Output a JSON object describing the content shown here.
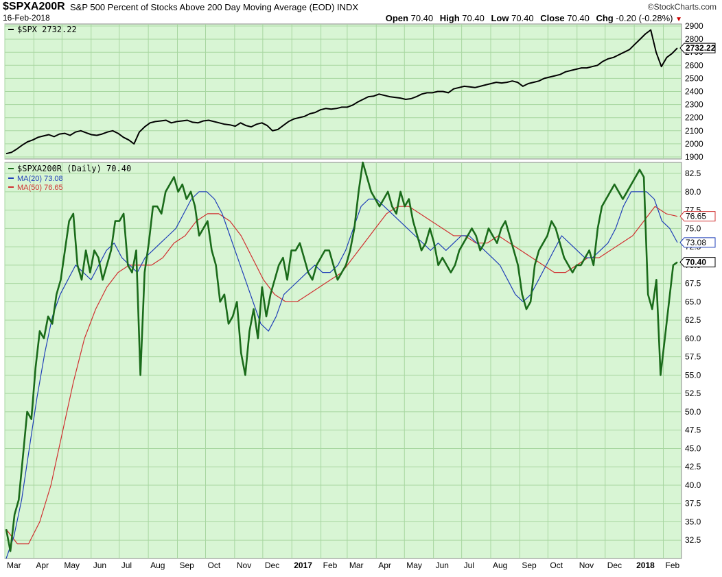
{
  "header": {
    "symbol": "$SPXA200R",
    "description": "S&P 500 Percent of Stocks Above 200 Day Moving Average (EOD)",
    "exchange": "INDX",
    "date": "16-Feb-2018",
    "brand": "©StockCharts.com",
    "open_label": "Open",
    "open": "70.40",
    "high_label": "High",
    "high": "70.40",
    "low_label": "Low",
    "low": "70.40",
    "close_label": "Close",
    "close": "70.40",
    "chg_label": "Chg",
    "chg": "-0.20 (-0.28%)",
    "chg_arrow": "▼"
  },
  "chart_data": [
    {
      "type": "line",
      "panel": "top",
      "series": [
        {
          "name": "$SPX 2732.22",
          "color": "#000000",
          "last_label": "2732.22",
          "values": [
            1925,
            1935,
            1960,
            1990,
            2015,
            2030,
            2050,
            2060,
            2070,
            2055,
            2075,
            2080,
            2065,
            2090,
            2100,
            2085,
            2070,
            2065,
            2075,
            2090,
            2100,
            2080,
            2050,
            2030,
            2000,
            2090,
            2130,
            2160,
            2170,
            2175,
            2180,
            2160,
            2170,
            2175,
            2180,
            2165,
            2160,
            2175,
            2180,
            2170,
            2160,
            2150,
            2145,
            2135,
            2160,
            2140,
            2130,
            2150,
            2160,
            2140,
            2100,
            2110,
            2140,
            2170,
            2190,
            2200,
            2210,
            2230,
            2240,
            2260,
            2270,
            2265,
            2270,
            2280,
            2280,
            2295,
            2320,
            2340,
            2360,
            2365,
            2380,
            2370,
            2360,
            2355,
            2350,
            2340,
            2345,
            2360,
            2380,
            2390,
            2390,
            2400,
            2400,
            2390,
            2420,
            2430,
            2440,
            2435,
            2430,
            2440,
            2450,
            2460,
            2470,
            2465,
            2470,
            2480,
            2470,
            2440,
            2460,
            2470,
            2480,
            2500,
            2510,
            2520,
            2530,
            2550,
            2560,
            2570,
            2580,
            2580,
            2590,
            2600,
            2630,
            2650,
            2660,
            2680,
            2700,
            2720,
            2760,
            2800,
            2840,
            2870,
            2700,
            2590,
            2660,
            2690,
            2732
          ]
        }
      ],
      "ylim": [
        1900,
        2900
      ],
      "yticks": [
        1900,
        2000,
        2100,
        2200,
        2300,
        2400,
        2500,
        2600,
        2700,
        2800,
        2900
      ]
    },
    {
      "type": "line",
      "panel": "bottom",
      "x_start": "2016-03-01",
      "x_end": "2018-02-16",
      "xticks": [
        {
          "label": "Mar",
          "date": "2016-03-01",
          "bold": false
        },
        {
          "label": "Apr",
          "date": "2016-04-01",
          "bold": false
        },
        {
          "label": "May",
          "date": "2016-05-01",
          "bold": false
        },
        {
          "label": "Jun",
          "date": "2016-06-01",
          "bold": false
        },
        {
          "label": "Jul",
          "date": "2016-07-01",
          "bold": false
        },
        {
          "label": "Aug",
          "date": "2016-08-01",
          "bold": false
        },
        {
          "label": "Sep",
          "date": "2016-09-01",
          "bold": false
        },
        {
          "label": "Oct",
          "date": "2016-10-01",
          "bold": false
        },
        {
          "label": "Nov",
          "date": "2016-11-01",
          "bold": false
        },
        {
          "label": "Dec",
          "date": "2016-12-01",
          "bold": false
        },
        {
          "label": "2017",
          "date": "2017-01-01",
          "bold": true
        },
        {
          "label": "Feb",
          "date": "2017-02-01",
          "bold": false
        },
        {
          "label": "Mar",
          "date": "2017-03-01",
          "bold": false
        },
        {
          "label": "Apr",
          "date": "2017-04-01",
          "bold": false
        },
        {
          "label": "May",
          "date": "2017-05-01",
          "bold": false
        },
        {
          "label": "Jun",
          "date": "2017-06-01",
          "bold": false
        },
        {
          "label": "Jul",
          "date": "2017-07-01",
          "bold": false
        },
        {
          "label": "Aug",
          "date": "2017-08-01",
          "bold": false
        },
        {
          "label": "Sep",
          "date": "2017-09-01",
          "bold": false
        },
        {
          "label": "Oct",
          "date": "2017-10-01",
          "bold": false
        },
        {
          "label": "Nov",
          "date": "2017-11-01",
          "bold": false
        },
        {
          "label": "Dec",
          "date": "2017-12-01",
          "bold": false
        },
        {
          "label": "2018",
          "date": "2018-01-01",
          "bold": true
        },
        {
          "label": "Feb",
          "date": "2018-02-01",
          "bold": false
        }
      ],
      "ylim": [
        30,
        84
      ],
      "yticks": [
        32.5,
        35.0,
        37.5,
        40.0,
        42.5,
        45.0,
        47.5,
        50.0,
        52.5,
        55.0,
        57.5,
        60.0,
        62.5,
        65.0,
        67.5,
        70.0,
        72.5,
        75.0,
        77.5,
        80.0,
        82.5
      ],
      "series": [
        {
          "name": "$SPXA200R (Daily) 70.40",
          "color": "#1a6b1a",
          "last_label": "70.40",
          "values": [
            34,
            31,
            36,
            38,
            44,
            50,
            49,
            56,
            61,
            60,
            63,
            62,
            66,
            68,
            72,
            76,
            77,
            70,
            68,
            72,
            69,
            72,
            71,
            68,
            70,
            72,
            76,
            76,
            77,
            70,
            69,
            72,
            55,
            69,
            73,
            78,
            78,
            77,
            80,
            81,
            82,
            80,
            81,
            79,
            80,
            78,
            74,
            75,
            76,
            72,
            70,
            65,
            66,
            62,
            63,
            65,
            58,
            55,
            61,
            64,
            60,
            67,
            63,
            66,
            68,
            70,
            71,
            68,
            72,
            72,
            73,
            71,
            69,
            68,
            70,
            71,
            72,
            72,
            70,
            68,
            69,
            70,
            72,
            75,
            80,
            84,
            82,
            80,
            79,
            78,
            79,
            80,
            78,
            77,
            80,
            78,
            79,
            76,
            74,
            72,
            73,
            75,
            73,
            70,
            71,
            70,
            69,
            70,
            72,
            73,
            74,
            75,
            74,
            72,
            73,
            75,
            74,
            73,
            75,
            76,
            74,
            72,
            70,
            66,
            64,
            65,
            70,
            72,
            73,
            74,
            76,
            75,
            73,
            71,
            70,
            69,
            70,
            70,
            71,
            72,
            70,
            75,
            78,
            79,
            80,
            81,
            80,
            79,
            80,
            81,
            82,
            83,
            82,
            66,
            64,
            68,
            55,
            60,
            65,
            70,
            70.4
          ]
        },
        {
          "name": "MA(20) 73.08",
          "color": "#1f3fb8",
          "last_label": "73.08",
          "values": [
            30,
            33,
            38,
            45,
            52,
            58,
            63,
            66,
            68,
            70,
            69,
            68,
            70,
            72,
            73,
            71,
            70,
            69,
            71,
            72,
            73,
            74,
            75,
            77,
            79,
            80,
            80,
            79,
            77,
            74,
            71,
            68,
            65,
            62,
            61,
            63,
            66,
            67,
            68,
            69,
            70,
            69,
            69,
            70,
            72,
            75,
            78,
            79,
            79,
            78,
            77,
            76,
            75,
            74,
            73,
            72,
            73,
            72,
            73,
            74,
            74,
            73,
            72,
            71,
            70,
            68,
            66,
            65,
            66,
            68,
            70,
            72,
            74,
            73,
            72,
            71,
            71,
            72,
            73,
            75,
            78,
            80,
            80,
            80,
            79,
            76,
            75,
            73.08
          ]
        },
        {
          "name": "MA(50) 76.65",
          "color": "#d03030",
          "last_label": "76.65",
          "values": [
            34,
            32,
            32,
            35,
            40,
            47,
            54,
            60,
            64,
            67,
            69,
            70,
            70,
            70,
            71,
            73,
            74,
            76,
            77,
            77,
            76,
            74,
            71,
            68,
            66,
            65,
            65,
            66,
            67,
            68,
            69,
            71,
            73,
            75,
            77,
            78,
            78,
            77,
            76,
            75,
            74,
            74,
            73,
            73,
            74,
            73,
            72,
            71,
            70,
            69,
            69,
            70,
            71,
            71,
            72,
            73,
            74,
            76,
            78,
            77,
            76.65
          ]
        }
      ]
    }
  ]
}
